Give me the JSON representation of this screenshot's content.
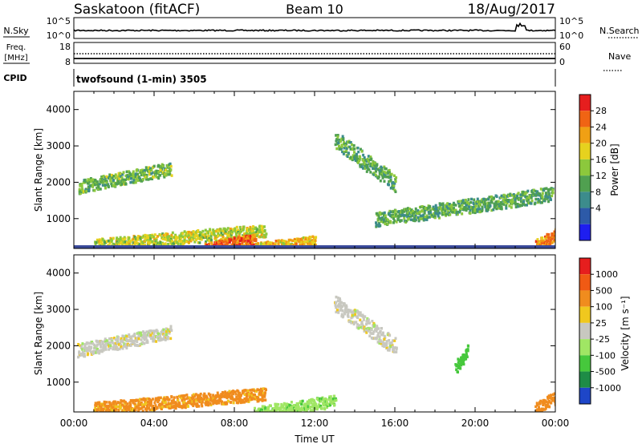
{
  "header": {
    "station": "Saskatoon (fitACF)",
    "beam": "Beam 10",
    "date": "18/Aug/2017"
  },
  "nsky_panel": {
    "left_label": "N.Sky",
    "right_label": "N.Search",
    "left_ticks": [
      "10^5",
      "10^0"
    ],
    "right_ticks": [
      "10^5",
      "10^0"
    ]
  },
  "freq_panel": {
    "left_label_1": "Freq.",
    "left_label_2": "[MHz]",
    "right_label": "Nave",
    "left_ticks": [
      "18",
      "8"
    ],
    "right_ticks": [
      "60",
      "0"
    ]
  },
  "cpid": {
    "label": "CPID",
    "text": "twofsound (1-min) 3505"
  },
  "x_axis": {
    "label": "Time UT",
    "ticks": [
      "00:00",
      "04:00",
      "08:00",
      "12:00",
      "16:00",
      "20:00",
      "00:00"
    ]
  },
  "chart_data": [
    {
      "type": "heatmap",
      "title": "",
      "xlabel": "Time UT",
      "ylabel": "Slant Range [km]",
      "xlim_hours": [
        0,
        24
      ],
      "ylim": [
        180,
        4500
      ],
      "yticks": [
        1000,
        2000,
        3000,
        4000
      ],
      "colorbar": {
        "label": "Power [dB]",
        "ticks": [
          "28",
          "24",
          "20",
          "16",
          "12",
          "8",
          "4"
        ],
        "colors": [
          "#1e1ef0",
          "#2d5aa8",
          "#3c8c8c",
          "#50a050",
          "#8cc83c",
          "#e6d21e",
          "#f0a014",
          "#f06414",
          "#e61e1e"
        ]
      },
      "scatter_features": [
        {
          "t_start": 0.2,
          "t_end": 4.8,
          "range_start": 1900,
          "range_end": 2400,
          "value_dB": 14
        },
        {
          "t_start": 1.0,
          "t_end": 9.5,
          "range_start": 300,
          "range_end": 700,
          "value_dB": 18
        },
        {
          "t_start": 6.5,
          "t_end": 9.0,
          "range_start": 200,
          "range_end": 450,
          "value_dB": 28
        },
        {
          "t_start": 9.0,
          "t_end": 12.0,
          "range_start": 200,
          "range_end": 400,
          "value_dB": 22
        },
        {
          "t_start": 13.0,
          "t_end": 16.0,
          "range_start": 3200,
          "range_end": 2000,
          "value_dB": 12
        },
        {
          "t_start": 15.0,
          "t_end": 23.8,
          "range_start": 1000,
          "range_end": 1700,
          "value_dB": 12
        },
        {
          "t_start": 23.0,
          "t_end": 24.0,
          "range_start": 300,
          "range_end": 600,
          "value_dB": 26
        }
      ]
    },
    {
      "type": "heatmap",
      "title": "",
      "xlabel": "Time UT",
      "ylabel": "Slant Range [km]",
      "xlim_hours": [
        0,
        24
      ],
      "ylim": [
        180,
        4500
      ],
      "yticks": [
        1000,
        2000,
        3000,
        4000
      ],
      "colorbar": {
        "label": "Velocity [m s⁻¹]",
        "ticks": [
          "1000",
          "500",
          "100",
          "25",
          "-25",
          "-100",
          "-500",
          "-1000"
        ],
        "colors": [
          "#1e46c8",
          "#1e8c46",
          "#46c83c",
          "#a0e664",
          "#c8c8c0",
          "#f0c81e",
          "#f08c1e",
          "#f05a14",
          "#e61e1e"
        ]
      },
      "scatter_features": [
        {
          "t_start": 0.2,
          "t_end": 4.8,
          "range_start": 1900,
          "range_end": 2400,
          "value_ms": 0
        },
        {
          "t_start": 1.0,
          "t_end": 9.5,
          "range_start": 300,
          "range_end": 700,
          "value_ms": 120
        },
        {
          "t_start": 9.0,
          "t_end": 13.0,
          "range_start": 200,
          "range_end": 500,
          "value_ms": -80
        },
        {
          "t_start": 13.0,
          "t_end": 16.0,
          "range_start": 3200,
          "range_end": 2000,
          "value_ms": 0
        },
        {
          "t_start": 19.0,
          "t_end": 19.6,
          "range_start": 1400,
          "range_end": 1900,
          "value_ms": -400
        },
        {
          "t_start": 23.0,
          "t_end": 24.0,
          "range_start": 300,
          "range_end": 600,
          "value_ms": 150
        }
      ]
    }
  ]
}
